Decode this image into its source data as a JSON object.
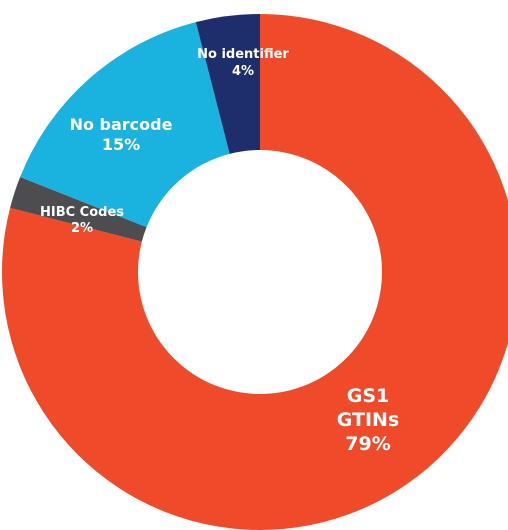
{
  "chart_data": {
    "type": "pie",
    "donut": true,
    "series": [
      {
        "name": "GS1 GTINs",
        "value": 79,
        "value_label": "79%",
        "label_lines": [
          "GS1",
          "GTINs",
          "79%"
        ],
        "color": "#ef4b2a"
      },
      {
        "name": "HIBC Codes",
        "value": 2,
        "value_label": "2%",
        "label_lines": [
          "HIBC Codes",
          "2%"
        ],
        "color": "#4d4d4f"
      },
      {
        "name": "No barcode",
        "value": 15,
        "value_label": "15%",
        "label_lines": [
          "No barcode",
          "15%"
        ],
        "color": "#1ab3e0"
      },
      {
        "name": "No identifier",
        "value": 4,
        "value_label": "4%",
        "label_lines": [
          "No identifier",
          "4%"
        ],
        "color": "#1e2d6b"
      }
    ],
    "title": "",
    "legend": "none"
  }
}
